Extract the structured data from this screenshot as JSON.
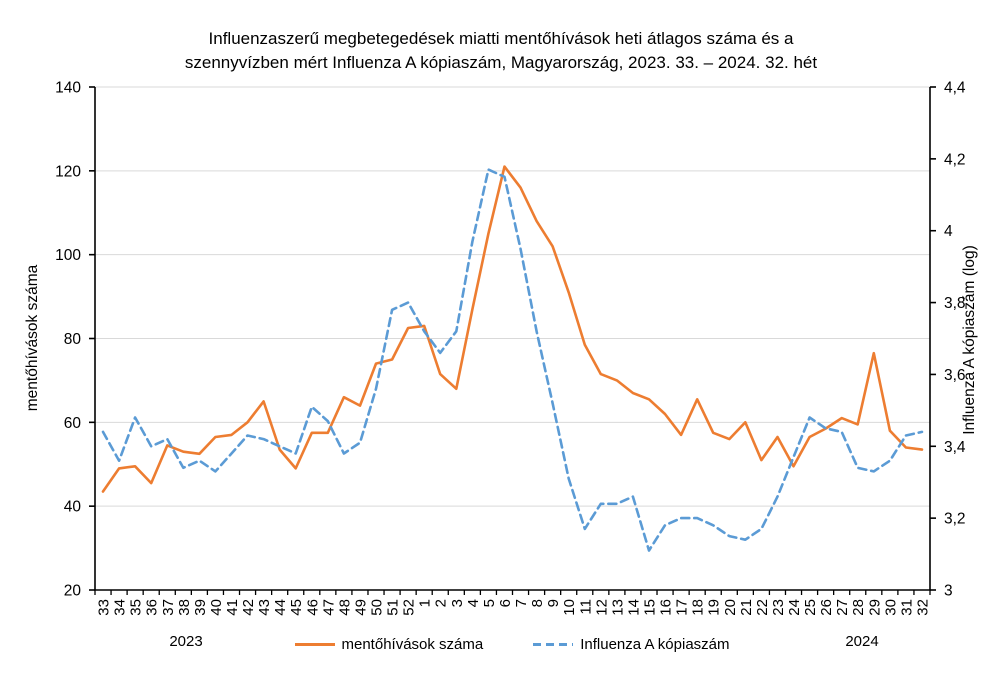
{
  "title": {
    "line1": "Influenzaszerű megbetegedések miatti mentőhívások heti átlagos száma és a",
    "line2": "szennyvízben mért Influenza A kópiaszám, Magyarország, 2023. 33. – 2024. 32. hét"
  },
  "left_axis": {
    "title": "mentőhívások száma",
    "tick_values": [
      20,
      40,
      60,
      80,
      100,
      120,
      140
    ],
    "tick_labels": [
      "20",
      "40",
      "60",
      "80",
      "100",
      "120",
      "140"
    ],
    "min": 20,
    "max": 140
  },
  "right_axis": {
    "title": "Influenza A kópiaszám (log)",
    "tick_values": [
      3,
      3.2,
      3.4,
      3.6,
      3.8,
      4,
      4.2,
      4.4
    ],
    "tick_labels": [
      "3",
      "3,2",
      "3,4",
      "3,6",
      "3,8",
      "4",
      "4,2",
      "4,4"
    ],
    "min": 3,
    "max": 4.4
  },
  "x_axis": {
    "year_left": "2023",
    "year_right": "2024"
  },
  "legend": {
    "items": [
      {
        "label": "mentőhívások száma",
        "color": "#ED7D31",
        "style": "solid"
      },
      {
        "label": "Influenza A kópiaszám",
        "color": "#5B9BD5",
        "style": "dashed"
      }
    ]
  },
  "colors": {
    "calls_series": "#ED7D31",
    "copies_series": "#5B9BD5",
    "gridline": "#D9D9D9",
    "axis": "#000000"
  },
  "chart_data": {
    "type": "line",
    "title": "Influenzaszerű megbetegedések miatti mentőhívások heti átlagos száma és a szennyvízben mért Influenza A kópiaszám, Magyarország, 2023. 33. – 2024. 32. hét",
    "categories": [
      "33",
      "34",
      "35",
      "36",
      "37",
      "38",
      "39",
      "40",
      "41",
      "42",
      "43",
      "44",
      "45",
      "46",
      "47",
      "48",
      "49",
      "50",
      "51",
      "52",
      "1",
      "2",
      "3",
      "4",
      "5",
      "6",
      "7",
      "8",
      "9",
      "10",
      "11",
      "12",
      "13",
      "14",
      "15",
      "16",
      "17",
      "18",
      "19",
      "20",
      "21",
      "22",
      "23",
      "24",
      "25",
      "26",
      "27",
      "28",
      "29",
      "30",
      "31",
      "32"
    ],
    "grid": "horizontal",
    "legend_position": "bottom",
    "left_ylabel": "mentőhívások száma",
    "right_ylabel": "Influenza A kópiaszám (log)",
    "left_ylim": [
      20,
      140
    ],
    "right_ylim": [
      3,
      4.4
    ],
    "series": [
      {
        "name": "mentőhívások száma",
        "axis": "left",
        "color": "#ED7D31",
        "dashed": false,
        "values": [
          43.5,
          49,
          49.5,
          45.5,
          54.5,
          53,
          52.5,
          56.5,
          57,
          60,
          65,
          53.5,
          49,
          57.5,
          57.5,
          66,
          64,
          74,
          75,
          82.5,
          83,
          71.5,
          68,
          87,
          105,
          121,
          116,
          108,
          102,
          91,
          78.5,
          71.5,
          70,
          67,
          65.5,
          62,
          57,
          65.5,
          57.5,
          56,
          60,
          51,
          56.5,
          49.5,
          56.5,
          58.5,
          61,
          59.5,
          76.5,
          58,
          54,
          53.5
        ]
      },
      {
        "name": "Influenza A kópiaszám",
        "axis": "right",
        "color": "#5B9BD5",
        "dashed": true,
        "values": [
          3.44,
          3.36,
          3.48,
          3.4,
          3.42,
          3.34,
          3.36,
          3.33,
          3.38,
          3.43,
          3.42,
          3.4,
          3.38,
          3.51,
          3.47,
          3.38,
          3.41,
          3.56,
          3.78,
          3.8,
          3.72,
          3.66,
          3.72,
          3.97,
          4.17,
          4.15,
          3.95,
          3.72,
          3.52,
          3.31,
          3.17,
          3.24,
          3.24,
          3.26,
          3.11,
          3.18,
          3.2,
          3.2,
          3.18,
          3.15,
          3.14,
          3.17,
          3.26,
          3.37,
          3.48,
          3.45,
          3.44,
          3.34,
          3.33,
          3.36,
          3.43,
          3.44
        ]
      }
    ]
  }
}
